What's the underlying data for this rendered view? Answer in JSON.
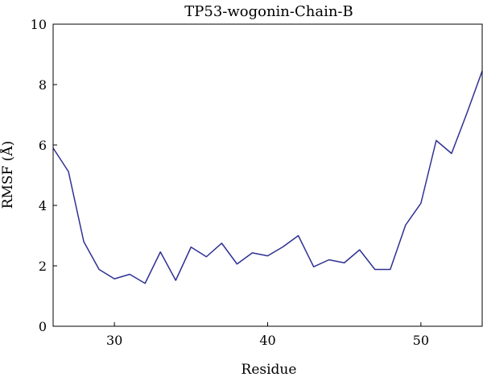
{
  "chart_data": {
    "type": "line",
    "title": "TP53-wogonin-Chain-B",
    "xlabel": "Residue",
    "ylabel": "RMSF (Å)",
    "xlim": [
      26,
      54
    ],
    "ylim": [
      0,
      10
    ],
    "xticks": [
      30,
      40,
      50
    ],
    "yticks": [
      0,
      2,
      4,
      6,
      8,
      10
    ],
    "grid": false,
    "line_color": "#2e3192",
    "series": [
      {
        "x": [
          26,
          27,
          28,
          29,
          30,
          31,
          32,
          33,
          34,
          35,
          36,
          37,
          38,
          39,
          40,
          41,
          42,
          43,
          44,
          45,
          46,
          47,
          48,
          49,
          50,
          51,
          52,
          53,
          54
        ],
        "values": [
          5.9,
          5.12,
          2.8,
          1.88,
          1.57,
          1.72,
          1.42,
          2.46,
          1.52,
          2.62,
          2.3,
          2.75,
          2.06,
          2.43,
          2.33,
          2.63,
          3.0,
          1.97,
          2.2,
          2.1,
          2.53,
          1.88,
          1.88,
          3.35,
          4.07,
          6.15,
          5.72,
          7.05,
          8.45
        ]
      }
    ]
  }
}
